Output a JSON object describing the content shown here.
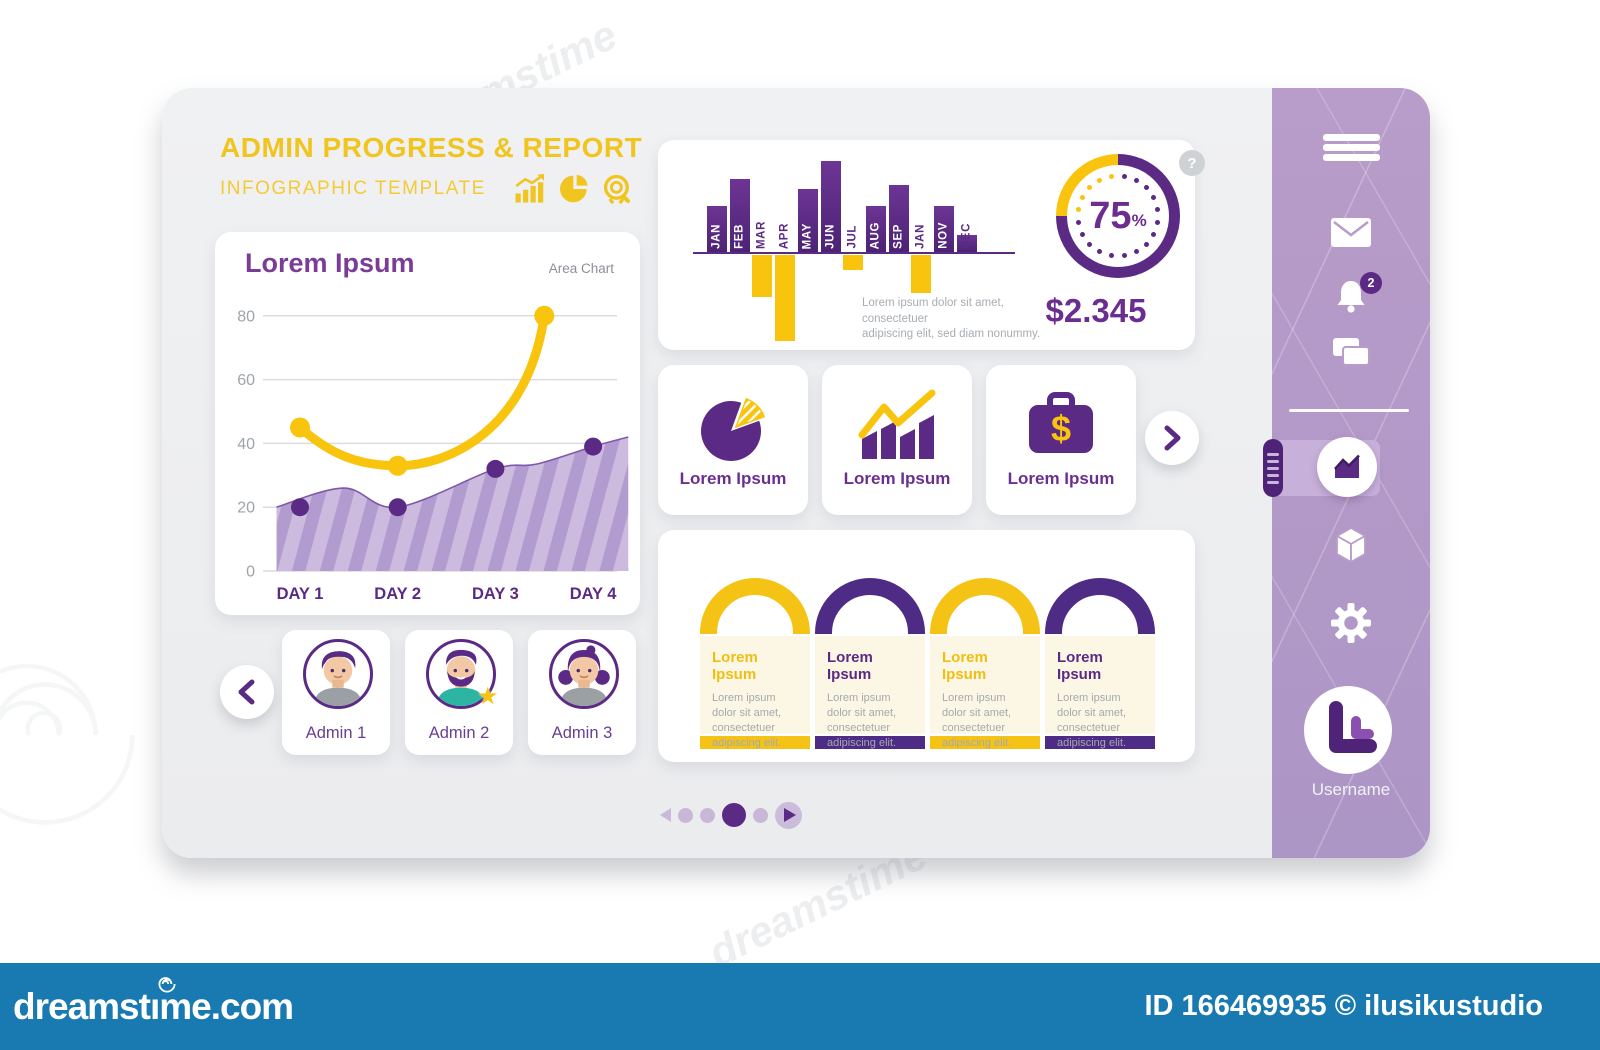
{
  "header": {
    "title": "ADMIN PROGRESS & REPORT",
    "subtitle": "INFOGRAPHIC TEMPLATE"
  },
  "area_card": {
    "title": "Lorem Ipsum",
    "tag": "Area Chart"
  },
  "chart_data": [
    {
      "id": "area-chart",
      "type": "area",
      "title": "Lorem Ipsum",
      "subtitle": "Area Chart",
      "categories": [
        "DAY 1",
        "DAY 2",
        "DAY 3",
        "DAY 4"
      ],
      "yticks": [
        0,
        20,
        40,
        60,
        80
      ],
      "ylim": [
        0,
        88
      ],
      "grid": true,
      "series": [
        {
          "name": "yellow-line",
          "type": "line",
          "color": "#F8C40D",
          "x": [
            0,
            1,
            2.5
          ],
          "values": [
            45,
            33,
            80
          ]
        },
        {
          "name": "purple-area",
          "type": "area",
          "color": "#5B2A84",
          "x": [
            0,
            1,
            2,
            3
          ],
          "values": [
            20,
            20,
            32,
            39
          ]
        }
      ]
    },
    {
      "id": "monthly-bars",
      "type": "bar",
      "categories": [
        "JAN",
        "FEB",
        "MAR",
        "APR",
        "MAY",
        "JUN",
        "JUL",
        "AUG",
        "SEP",
        "JAN",
        "NOV",
        "DEC"
      ],
      "values": [
        46,
        73,
        -42,
        -86,
        63,
        91,
        -15,
        46,
        67,
        -38,
        46,
        17
      ],
      "positive_color": "#5B2A84",
      "negative_color": "#F8C40D"
    },
    {
      "id": "progress-gauge",
      "type": "donut",
      "value": 75,
      "max": 100,
      "label": "75",
      "suffix": "%",
      "main_color": "#5B2A84",
      "rest_color": "#F8C40D"
    }
  ],
  "stat_card": {
    "description_line1": "Lorem ipsum dolor sit amet, consectetuer",
    "description_line2": "adipiscing elit, sed diam nonummy.",
    "amount": "$2.345",
    "help": "?"
  },
  "mini_cards": [
    {
      "icon": "pie-chart",
      "label": "Lorem Ipsum"
    },
    {
      "icon": "bar-line-chart",
      "label": "Lorem Ipsum"
    },
    {
      "icon": "briefcase-dollar",
      "label": "Lorem Ipsum"
    }
  ],
  "arch_card": {
    "items": [
      {
        "color": "#F5C315",
        "title_color": "#EFBE13",
        "title": "Lorem Ipsum",
        "body": "Lorem ipsum dolor sit amet, consectetuer adipiscing elit."
      },
      {
        "color": "#4E2C86",
        "title_color": "#5B2A84",
        "title": "Lorem Ipsum",
        "body": "Lorem ipsum dolor sit amet, consectetuer adipiscing elit."
      },
      {
        "color": "#F5C315",
        "title_color": "#EFBE13",
        "title": "Lorem Ipsum",
        "body": "Lorem ipsum dolor sit amet, consectetuer adipiscing elit."
      },
      {
        "color": "#4E2C86",
        "title_color": "#5B2A84",
        "title": "Lorem Ipsum",
        "body": "Lorem ipsum dolor sit amet, consectetuer adipiscing elit."
      }
    ]
  },
  "admins": {
    "items": [
      {
        "name": "Admin 1",
        "avatar": "man",
        "starred": false
      },
      {
        "name": "Admin 2",
        "avatar": "bearded-man",
        "starred": true
      },
      {
        "name": "Admin 3",
        "avatar": "woman",
        "starred": false
      }
    ]
  },
  "pagination": {
    "dots": 4,
    "active_index": 2
  },
  "sidebar": {
    "notification_count": "2",
    "username": "Username"
  },
  "watermark": {
    "brand_left": "dreamst",
    "brand_right": "ıme.com",
    "brand": "dreamstime.com",
    "credit": "ID 166469935 © ilusikustudio",
    "diagonal": "dreamstime"
  },
  "colors": {
    "yellow": "#F8C40D",
    "purple": "#5B2A84",
    "purple_mid": "#7B3C97",
    "sidebar": "#B89CC9",
    "cream": "#FCF7E5",
    "bar_blue": "#1979B1",
    "panel": "#EFF0F2"
  }
}
